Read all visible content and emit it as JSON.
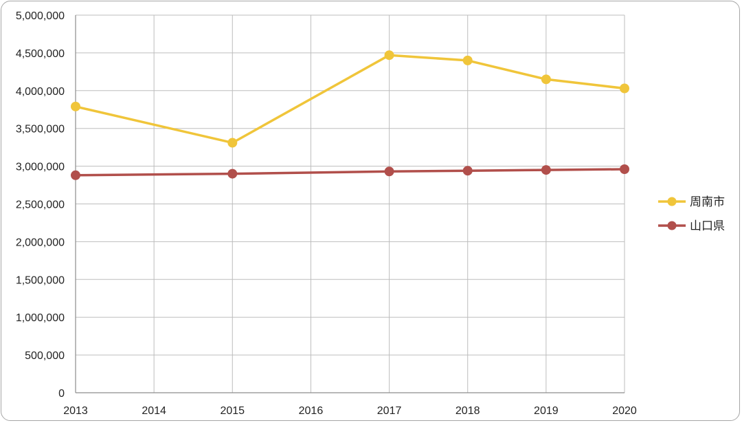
{
  "chart_data": {
    "type": "line",
    "x": [
      2013,
      2014,
      2015,
      2016,
      2017,
      2018,
      2019,
      2020
    ],
    "x_tick_labels": [
      "2013",
      "2014",
      "2015",
      "2016",
      "2017",
      "2018",
      "2019",
      "2020"
    ],
    "ylim": [
      0,
      5000000
    ],
    "y_ticks": [
      0,
      500000,
      1000000,
      1500000,
      2000000,
      2500000,
      3000000,
      3500000,
      4000000,
      4500000,
      5000000
    ],
    "y_tick_labels": [
      "0",
      "500,000",
      "1,000,000",
      "1,500,000",
      "2,000,000",
      "2,500,000",
      "3,000,000",
      "3,500,000",
      "4,000,000",
      "4,500,000",
      "5,000,000"
    ],
    "grid": true,
    "legend_position": "right",
    "series": [
      {
        "name": "周南市",
        "color": "#f0c53a",
        "points": [
          {
            "x": 2013,
            "y": 3790000
          },
          {
            "x": 2015,
            "y": 3310000
          },
          {
            "x": 2017,
            "y": 4470000
          },
          {
            "x": 2018,
            "y": 4400000
          },
          {
            "x": 2019,
            "y": 4150000
          },
          {
            "x": 2020,
            "y": 4030000
          }
        ]
      },
      {
        "name": "山口県",
        "color": "#b14f4b",
        "points": [
          {
            "x": 2013,
            "y": 2880000
          },
          {
            "x": 2015,
            "y": 2900000
          },
          {
            "x": 2017,
            "y": 2930000
          },
          {
            "x": 2018,
            "y": 2940000
          },
          {
            "x": 2019,
            "y": 2950000
          },
          {
            "x": 2020,
            "y": 2960000
          }
        ]
      }
    ]
  }
}
